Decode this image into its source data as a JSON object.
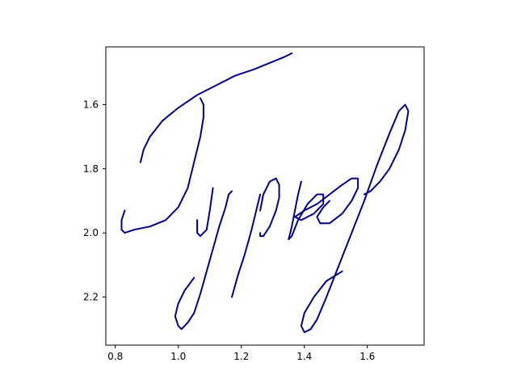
{
  "chart_data": {
    "type": "line",
    "title": "",
    "xlabel": "",
    "ylabel": "",
    "xlim": [
      0.77,
      1.78
    ],
    "ylim": [
      2.35,
      1.42
    ],
    "y_inverted": true,
    "grid": false,
    "legend": "none",
    "x_ticks": [
      {
        "value": 0.8,
        "label": "0.8"
      },
      {
        "value": 1.0,
        "label": "1.0"
      },
      {
        "value": 1.2,
        "label": "1.2"
      },
      {
        "value": 1.4,
        "label": "1.4"
      },
      {
        "value": 1.6,
        "label": "1.6"
      }
    ],
    "y_ticks": [
      {
        "value": 1.6,
        "label": "1.6"
      },
      {
        "value": 1.8,
        "label": "1.8"
      },
      {
        "value": 2.0,
        "label": "2.0"
      },
      {
        "value": 2.2,
        "label": "2.2"
      }
    ],
    "series": [
      {
        "color": "#00008b",
        "points": [
          [
            1.36,
            1.44
          ],
          [
            1.34,
            1.45
          ],
          [
            1.29,
            1.47
          ],
          [
            1.24,
            1.49
          ],
          [
            1.18,
            1.51
          ],
          [
            1.12,
            1.54
          ],
          [
            1.06,
            1.57
          ],
          [
            1.0,
            1.61
          ],
          [
            0.95,
            1.65
          ],
          [
            0.91,
            1.7
          ],
          [
            0.89,
            1.74
          ],
          [
            0.88,
            1.78
          ]
        ]
      },
      {
        "color": "#00008b",
        "points": [
          [
            1.07,
            1.58
          ],
          [
            1.08,
            1.6
          ],
          [
            1.08,
            1.64
          ],
          [
            1.07,
            1.7
          ],
          [
            1.05,
            1.78
          ],
          [
            1.03,
            1.86
          ],
          [
            1.0,
            1.92
          ],
          [
            0.96,
            1.96
          ],
          [
            0.91,
            1.98
          ],
          [
            0.86,
            1.99
          ],
          [
            0.83,
            2.0
          ],
          [
            0.82,
            1.99
          ],
          [
            0.82,
            1.96
          ],
          [
            0.83,
            1.93
          ]
        ]
      },
      {
        "color": "#00008b",
        "points": [
          [
            1.06,
            1.96
          ],
          [
            1.06,
            2.0
          ],
          [
            1.07,
            2.01
          ],
          [
            1.09,
            1.99
          ],
          [
            1.1,
            1.93
          ],
          [
            1.11,
            1.86
          ]
        ]
      },
      {
        "color": "#00008b",
        "points": [
          [
            1.17,
            1.87
          ],
          [
            1.16,
            1.88
          ],
          [
            1.15,
            1.92
          ],
          [
            1.13,
            1.98
          ],
          [
            1.11,
            2.05
          ],
          [
            1.09,
            2.12
          ],
          [
            1.07,
            2.19
          ],
          [
            1.05,
            2.25
          ],
          [
            1.03,
            2.28
          ],
          [
            1.01,
            2.3
          ],
          [
            1.0,
            2.29
          ],
          [
            0.99,
            2.26
          ],
          [
            1.0,
            2.22
          ],
          [
            1.02,
            2.18
          ],
          [
            1.05,
            2.14
          ]
        ]
      },
      {
        "color": "#00008b",
        "points": [
          [
            1.26,
            1.88
          ],
          [
            1.25,
            1.92
          ],
          [
            1.23,
            2.0
          ],
          [
            1.21,
            2.07
          ],
          [
            1.19,
            2.13
          ],
          [
            1.17,
            2.2
          ]
        ]
      },
      {
        "color": "#00008b",
        "points": [
          [
            1.26,
            2.0
          ],
          [
            1.26,
            2.01
          ],
          [
            1.27,
            2.01
          ],
          [
            1.29,
            1.98
          ],
          [
            1.31,
            1.93
          ],
          [
            1.32,
            1.89
          ],
          [
            1.32,
            1.85
          ],
          [
            1.31,
            1.83
          ],
          [
            1.29,
            1.84
          ],
          [
            1.27,
            1.88
          ],
          [
            1.26,
            1.93
          ]
        ]
      },
      {
        "color": "#00008b",
        "points": [
          [
            1.39,
            1.84
          ],
          [
            1.38,
            1.88
          ],
          [
            1.37,
            1.93
          ],
          [
            1.36,
            1.98
          ],
          [
            1.35,
            2.02
          ],
          [
            1.36,
            2.01
          ],
          [
            1.38,
            1.96
          ],
          [
            1.41,
            1.91
          ],
          [
            1.44,
            1.88
          ],
          [
            1.46,
            1.88
          ],
          [
            1.46,
            1.91
          ],
          [
            1.43,
            1.94
          ],
          [
            1.39,
            1.96
          ],
          [
            1.37,
            1.95
          ],
          [
            1.4,
            1.93
          ],
          [
            1.44,
            1.91
          ],
          [
            1.48,
            1.88
          ],
          [
            1.52,
            1.85
          ],
          [
            1.55,
            1.83
          ],
          [
            1.57,
            1.83
          ],
          [
            1.57,
            1.86
          ],
          [
            1.55,
            1.9
          ],
          [
            1.52,
            1.94
          ],
          [
            1.48,
            1.97
          ],
          [
            1.45,
            1.97
          ],
          [
            1.44,
            1.95
          ],
          [
            1.46,
            1.92
          ],
          [
            1.48,
            1.9
          ]
        ]
      },
      {
        "color": "#00008b",
        "points": [
          [
            1.59,
            1.88
          ],
          [
            1.61,
            1.87
          ],
          [
            1.64,
            1.84
          ],
          [
            1.67,
            1.8
          ],
          [
            1.7,
            1.74
          ],
          [
            1.72,
            1.68
          ],
          [
            1.73,
            1.62
          ],
          [
            1.72,
            1.6
          ],
          [
            1.7,
            1.62
          ],
          [
            1.67,
            1.69
          ],
          [
            1.63,
            1.79
          ],
          [
            1.59,
            1.9
          ],
          [
            1.55,
            2.0
          ],
          [
            1.51,
            2.1
          ],
          [
            1.47,
            2.2
          ],
          [
            1.44,
            2.27
          ],
          [
            1.42,
            2.3
          ],
          [
            1.4,
            2.31
          ],
          [
            1.39,
            2.29
          ],
          [
            1.4,
            2.25
          ],
          [
            1.43,
            2.2
          ],
          [
            1.47,
            2.15
          ],
          [
            1.52,
            2.12
          ]
        ]
      }
    ]
  }
}
